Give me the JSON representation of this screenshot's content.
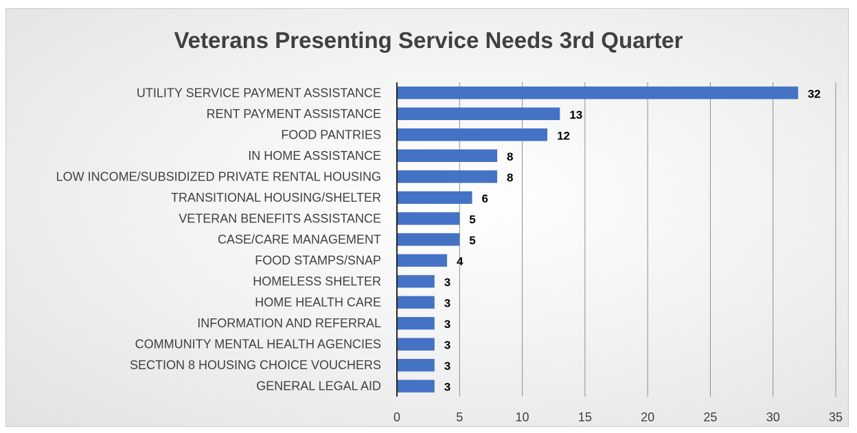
{
  "chart_data": {
    "type": "bar",
    "orientation": "horizontal",
    "title": "Veterans Presenting Service Needs 3rd Quarter",
    "categories": [
      "UTILITY SERVICE PAYMENT ASSISTANCE",
      "RENT PAYMENT ASSISTANCE",
      "FOOD PANTRIES",
      "IN HOME ASSISTANCE",
      "LOW INCOME/SUBSIDIZED PRIVATE RENTAL HOUSING",
      "TRANSITIONAL HOUSING/SHELTER",
      "VETERAN BENEFITS ASSISTANCE",
      "CASE/CARE MANAGEMENT",
      "FOOD STAMPS/SNAP",
      "HOMELESS SHELTER",
      "HOME HEALTH CARE",
      "INFORMATION AND REFERRAL",
      "COMMUNITY MENTAL HEALTH AGENCIES",
      "SECTION 8 HOUSING CHOICE VOUCHERS",
      "GENERAL LEGAL AID"
    ],
    "values": [
      32,
      13,
      12,
      8,
      8,
      6,
      5,
      5,
      4,
      3,
      3,
      3,
      3,
      3,
      3
    ],
    "xlim": [
      0,
      35
    ],
    "xticks": [
      0,
      5,
      10,
      15,
      20,
      25,
      30,
      35
    ],
    "grid": true,
    "data_labels": true,
    "legend": "none",
    "bar_color": "#4472c4",
    "title_color": "#404040",
    "text_color": "#404040"
  }
}
